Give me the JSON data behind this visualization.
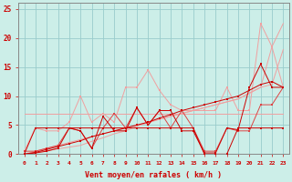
{
  "title": "",
  "xlabel": "Vent moyen/en rafales ( km/h )",
  "xlabel_color": "#cc0000",
  "background_color": "#cceee8",
  "grid_color": "#99cccc",
  "x": [
    0,
    1,
    2,
    3,
    4,
    5,
    6,
    7,
    8,
    9,
    10,
    11,
    12,
    13,
    14,
    15,
    16,
    17,
    18,
    19,
    20,
    21,
    22,
    23
  ],
  "line_light_diag": [
    0.0,
    0.5,
    1.0,
    1.5,
    2.0,
    2.5,
    3.0,
    3.5,
    4.0,
    4.5,
    5.0,
    5.5,
    6.0,
    6.5,
    7.0,
    7.5,
    8.0,
    8.5,
    9.0,
    9.5,
    10.5,
    11.5,
    18.5,
    22.5
  ],
  "line_light_flat": [
    7.0,
    7.0,
    7.0,
    7.0,
    7.0,
    7.0,
    7.0,
    7.0,
    7.0,
    7.0,
    7.0,
    7.0,
    7.0,
    7.0,
    7.0,
    7.0,
    7.0,
    7.0,
    7.0,
    7.0,
    7.0,
    7.0,
    7.0,
    7.0
  ],
  "line_light_diag2": [
    0.0,
    0.3,
    0.6,
    0.9,
    1.2,
    1.5,
    2.2,
    2.8,
    3.5,
    4.0,
    4.8,
    5.4,
    6.0,
    6.5,
    7.0,
    7.5,
    8.0,
    8.5,
    9.0,
    9.5,
    10.5,
    11.5,
    12.0,
    18.0
  ],
  "line_light_zigzag": [
    0.5,
    4.5,
    4.0,
    4.0,
    5.5,
    10.0,
    5.5,
    7.0,
    5.5,
    11.5,
    11.5,
    14.5,
    11.0,
    8.5,
    7.5,
    7.5,
    7.5,
    7.5,
    11.5,
    7.5,
    7.5,
    22.5,
    18.5,
    11.5
  ],
  "line_mid_zigzag": [
    0.5,
    0.5,
    1.0,
    1.5,
    4.5,
    4.0,
    1.0,
    4.5,
    7.0,
    4.5,
    8.0,
    5.0,
    7.5,
    4.5,
    7.5,
    4.5,
    0.5,
    0.5,
    4.5,
    4.0,
    4.0,
    8.5,
    8.5,
    11.5
  ],
  "line_dark_zigzag1": [
    0.0,
    0.2,
    0.5,
    1.0,
    4.5,
    4.0,
    1.0,
    6.5,
    4.0,
    4.0,
    8.0,
    5.0,
    7.5,
    7.5,
    4.0,
    4.0,
    0.2,
    0.2,
    4.5,
    4.2,
    11.5,
    15.5,
    11.5,
    11.5
  ],
  "line_dark_diag": [
    0.0,
    0.3,
    0.8,
    1.3,
    1.8,
    2.3,
    3.0,
    3.5,
    4.0,
    4.5,
    5.0,
    5.5,
    6.2,
    6.8,
    7.5,
    8.0,
    8.5,
    9.0,
    9.5,
    10.0,
    11.0,
    12.0,
    12.5,
    11.5
  ],
  "line_dark_zigzag2": [
    0.0,
    4.5,
    4.5,
    4.5,
    4.5,
    4.5,
    4.5,
    4.5,
    4.5,
    4.5,
    4.5,
    4.5,
    4.5,
    4.5,
    4.5,
    4.5,
    0.0,
    0.0,
    0.0,
    4.5,
    4.5,
    4.5,
    4.5,
    4.5
  ],
  "color_dark_red": "#cc0000",
  "color_mid_red": "#dd4444",
  "color_light_red": "#f0a0a0",
  "ylim": [
    0,
    26
  ],
  "yticks": [
    0,
    5,
    10,
    15,
    20,
    25
  ],
  "xticks": [
    0,
    1,
    2,
    3,
    4,
    5,
    6,
    7,
    8,
    9,
    10,
    11,
    12,
    13,
    14,
    15,
    16,
    17,
    18,
    19,
    20,
    21,
    22,
    23
  ]
}
